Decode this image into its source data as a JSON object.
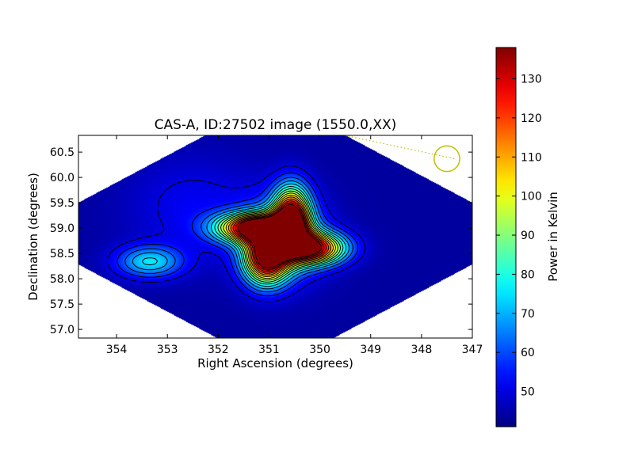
{
  "chart_data": {
    "type": "heatmap",
    "title": "CAS-A, ID:27502 image (1550.0,XX)",
    "xlabel": "Right Ascension (degrees)",
    "ylabel": "Declination (degrees)",
    "xlim": [
      354.75,
      347.0
    ],
    "ylim": [
      56.83,
      60.83
    ],
    "x_ticks": [
      "354",
      "353",
      "352",
      "351",
      "350",
      "349",
      "348",
      "347"
    ],
    "x_tick_values": [
      354,
      353,
      352,
      351,
      350,
      349,
      348,
      347
    ],
    "y_ticks": [
      "57.0",
      "57.5",
      "58.0",
      "58.5",
      "59.0",
      "59.5",
      "60.0",
      "60.5"
    ],
    "y_tick_values": [
      57.0,
      57.5,
      58.0,
      58.5,
      59.0,
      59.5,
      60.0,
      60.5
    ],
    "colormap": "jet",
    "colorbar": {
      "label": "Power in Kelvin",
      "min": 41,
      "max": 138,
      "ticks": [
        "50",
        "60",
        "70",
        "80",
        "90",
        "100",
        "110",
        "120",
        "130"
      ],
      "tick_values": [
        50,
        60,
        70,
        80,
        90,
        100,
        110,
        120,
        130
      ]
    },
    "background": 44,
    "sources": [
      {
        "ra": 351.3,
        "dec": 59.0,
        "peak": 90,
        "sigma_ra": 0.5,
        "sigma_dec": 0.2
      },
      {
        "ra": 350.55,
        "dec": 59.2,
        "peak": 88,
        "sigma_ra": 0.25,
        "sigma_dec": 0.42
      },
      {
        "ra": 350.15,
        "dec": 58.6,
        "peak": 85,
        "sigma_ra": 0.45,
        "sigma_dec": 0.22
      },
      {
        "ra": 351.05,
        "dec": 58.4,
        "peak": 85,
        "sigma_ra": 0.3,
        "sigma_dec": 0.35
      },
      {
        "ra": 350.75,
        "dec": 58.8,
        "peak": 30,
        "sigma_ra": 0.55,
        "sigma_dec": 0.55
      },
      {
        "ra": 353.35,
        "dec": 58.33,
        "peak": 30,
        "sigma_ra": 0.45,
        "sigma_dec": 0.22
      },
      {
        "ra": 352.5,
        "dec": 59.4,
        "peak": 8,
        "sigma_ra": 0.9,
        "sigma_dec": 0.7
      }
    ],
    "contour_levels": [
      50,
      56,
      62,
      68,
      74,
      80,
      86,
      92,
      98,
      104,
      110,
      116,
      122,
      128,
      134
    ],
    "beam_marker": {
      "ra": 347.5,
      "dec": 60.37,
      "radius_deg": 0.37,
      "color": "#bfbf00"
    }
  }
}
